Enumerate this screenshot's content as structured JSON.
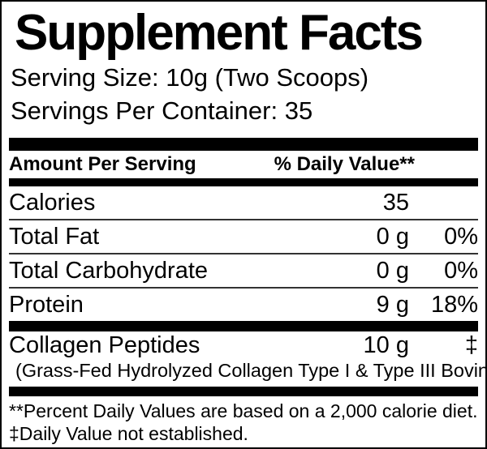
{
  "label": {
    "title": "Supplement Facts",
    "serving_size": "Serving Size: 10g (Two Scoops)",
    "servings_per_container": "Servings Per Container: 35",
    "header": {
      "amount": "Amount Per Serving",
      "daily_value": "% Daily Value**"
    },
    "rows": [
      {
        "name": "Calories",
        "amount": "35",
        "dv": ""
      },
      {
        "name": "Total Fat",
        "amount": "0 g",
        "dv": "0%"
      },
      {
        "name": "Total Carbohydrate",
        "amount": "0 g",
        "dv": "0%"
      },
      {
        "name": "Protein",
        "amount": "9 g",
        "dv": "18%"
      }
    ],
    "ingredient": {
      "name": "Collagen Peptides",
      "amount": "10 g",
      "dv": "‡",
      "detail": "(Grass-Fed Hydrolyzed Collagen Type I & Type III Bovine)"
    },
    "footnotes": [
      "**Percent Daily Values are based on a 2,000 calorie diet.",
      "‡Daily Value not established."
    ],
    "colors": {
      "border": "#000000",
      "bar": "#000000",
      "separator": "#333333",
      "background": "#ffffff",
      "text": "#000000"
    }
  }
}
